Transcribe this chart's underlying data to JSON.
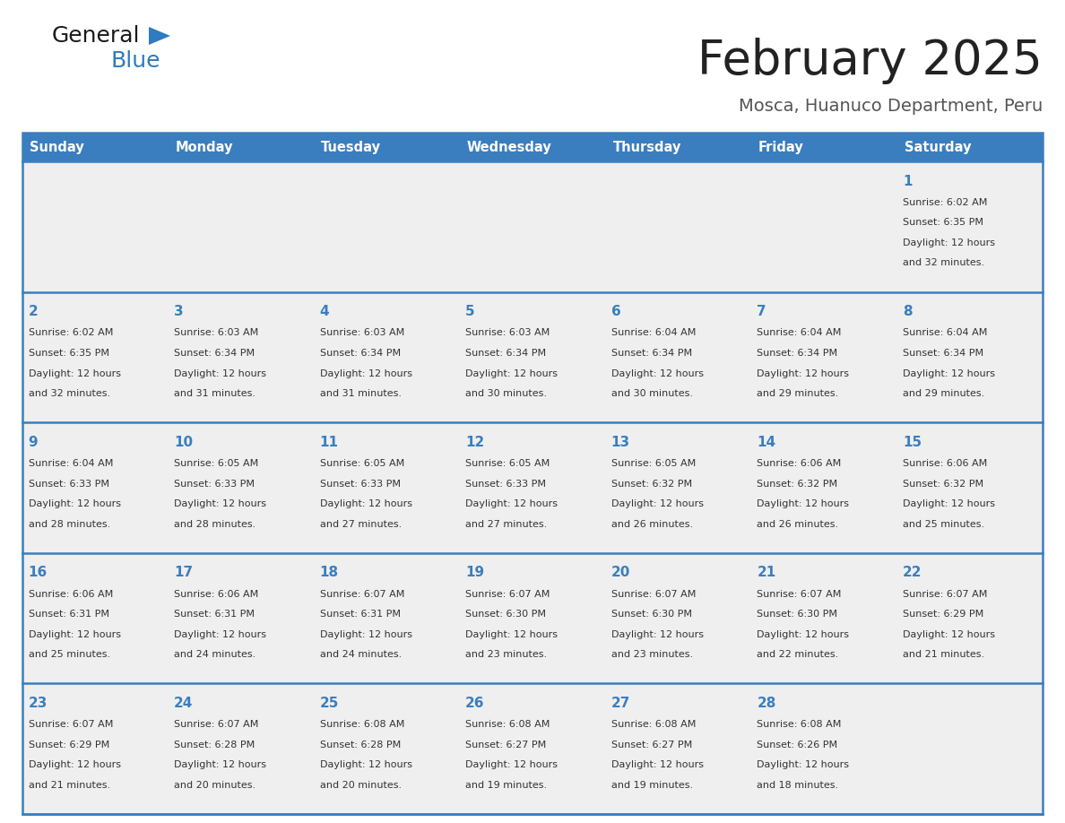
{
  "title": "February 2025",
  "subtitle": "Mosca, Huanuco Department, Peru",
  "header_color": "#3a7ebf",
  "header_text_color": "#ffffff",
  "cell_bg_color": "#efefef",
  "day_num_color": "#3a7ebf",
  "text_color": "#333333",
  "border_color": "#3a7ebf",
  "days_of_week": [
    "Sunday",
    "Monday",
    "Tuesday",
    "Wednesday",
    "Thursday",
    "Friday",
    "Saturday"
  ],
  "logo_general_color": "#1a1a1a",
  "logo_blue_color": "#2e7bbf",
  "weeks": [
    [
      {
        "day": "",
        "info": ""
      },
      {
        "day": "",
        "info": ""
      },
      {
        "day": "",
        "info": ""
      },
      {
        "day": "",
        "info": ""
      },
      {
        "day": "",
        "info": ""
      },
      {
        "day": "",
        "info": ""
      },
      {
        "day": "1",
        "info": "Sunrise: 6:02 AM\nSunset: 6:35 PM\nDaylight: 12 hours\nand 32 minutes."
      }
    ],
    [
      {
        "day": "2",
        "info": "Sunrise: 6:02 AM\nSunset: 6:35 PM\nDaylight: 12 hours\nand 32 minutes."
      },
      {
        "day": "3",
        "info": "Sunrise: 6:03 AM\nSunset: 6:34 PM\nDaylight: 12 hours\nand 31 minutes."
      },
      {
        "day": "4",
        "info": "Sunrise: 6:03 AM\nSunset: 6:34 PM\nDaylight: 12 hours\nand 31 minutes."
      },
      {
        "day": "5",
        "info": "Sunrise: 6:03 AM\nSunset: 6:34 PM\nDaylight: 12 hours\nand 30 minutes."
      },
      {
        "day": "6",
        "info": "Sunrise: 6:04 AM\nSunset: 6:34 PM\nDaylight: 12 hours\nand 30 minutes."
      },
      {
        "day": "7",
        "info": "Sunrise: 6:04 AM\nSunset: 6:34 PM\nDaylight: 12 hours\nand 29 minutes."
      },
      {
        "day": "8",
        "info": "Sunrise: 6:04 AM\nSunset: 6:34 PM\nDaylight: 12 hours\nand 29 minutes."
      }
    ],
    [
      {
        "day": "9",
        "info": "Sunrise: 6:04 AM\nSunset: 6:33 PM\nDaylight: 12 hours\nand 28 minutes."
      },
      {
        "day": "10",
        "info": "Sunrise: 6:05 AM\nSunset: 6:33 PM\nDaylight: 12 hours\nand 28 minutes."
      },
      {
        "day": "11",
        "info": "Sunrise: 6:05 AM\nSunset: 6:33 PM\nDaylight: 12 hours\nand 27 minutes."
      },
      {
        "day": "12",
        "info": "Sunrise: 6:05 AM\nSunset: 6:33 PM\nDaylight: 12 hours\nand 27 minutes."
      },
      {
        "day": "13",
        "info": "Sunrise: 6:05 AM\nSunset: 6:32 PM\nDaylight: 12 hours\nand 26 minutes."
      },
      {
        "day": "14",
        "info": "Sunrise: 6:06 AM\nSunset: 6:32 PM\nDaylight: 12 hours\nand 26 minutes."
      },
      {
        "day": "15",
        "info": "Sunrise: 6:06 AM\nSunset: 6:32 PM\nDaylight: 12 hours\nand 25 minutes."
      }
    ],
    [
      {
        "day": "16",
        "info": "Sunrise: 6:06 AM\nSunset: 6:31 PM\nDaylight: 12 hours\nand 25 minutes."
      },
      {
        "day": "17",
        "info": "Sunrise: 6:06 AM\nSunset: 6:31 PM\nDaylight: 12 hours\nand 24 minutes."
      },
      {
        "day": "18",
        "info": "Sunrise: 6:07 AM\nSunset: 6:31 PM\nDaylight: 12 hours\nand 24 minutes."
      },
      {
        "day": "19",
        "info": "Sunrise: 6:07 AM\nSunset: 6:30 PM\nDaylight: 12 hours\nand 23 minutes."
      },
      {
        "day": "20",
        "info": "Sunrise: 6:07 AM\nSunset: 6:30 PM\nDaylight: 12 hours\nand 23 minutes."
      },
      {
        "day": "21",
        "info": "Sunrise: 6:07 AM\nSunset: 6:30 PM\nDaylight: 12 hours\nand 22 minutes."
      },
      {
        "day": "22",
        "info": "Sunrise: 6:07 AM\nSunset: 6:29 PM\nDaylight: 12 hours\nand 21 minutes."
      }
    ],
    [
      {
        "day": "23",
        "info": "Sunrise: 6:07 AM\nSunset: 6:29 PM\nDaylight: 12 hours\nand 21 minutes."
      },
      {
        "day": "24",
        "info": "Sunrise: 6:07 AM\nSunset: 6:28 PM\nDaylight: 12 hours\nand 20 minutes."
      },
      {
        "day": "25",
        "info": "Sunrise: 6:08 AM\nSunset: 6:28 PM\nDaylight: 12 hours\nand 20 minutes."
      },
      {
        "day": "26",
        "info": "Sunrise: 6:08 AM\nSunset: 6:27 PM\nDaylight: 12 hours\nand 19 minutes."
      },
      {
        "day": "27",
        "info": "Sunrise: 6:08 AM\nSunset: 6:27 PM\nDaylight: 12 hours\nand 19 minutes."
      },
      {
        "day": "28",
        "info": "Sunrise: 6:08 AM\nSunset: 6:26 PM\nDaylight: 12 hours\nand 18 minutes."
      },
      {
        "day": "",
        "info": ""
      }
    ]
  ]
}
